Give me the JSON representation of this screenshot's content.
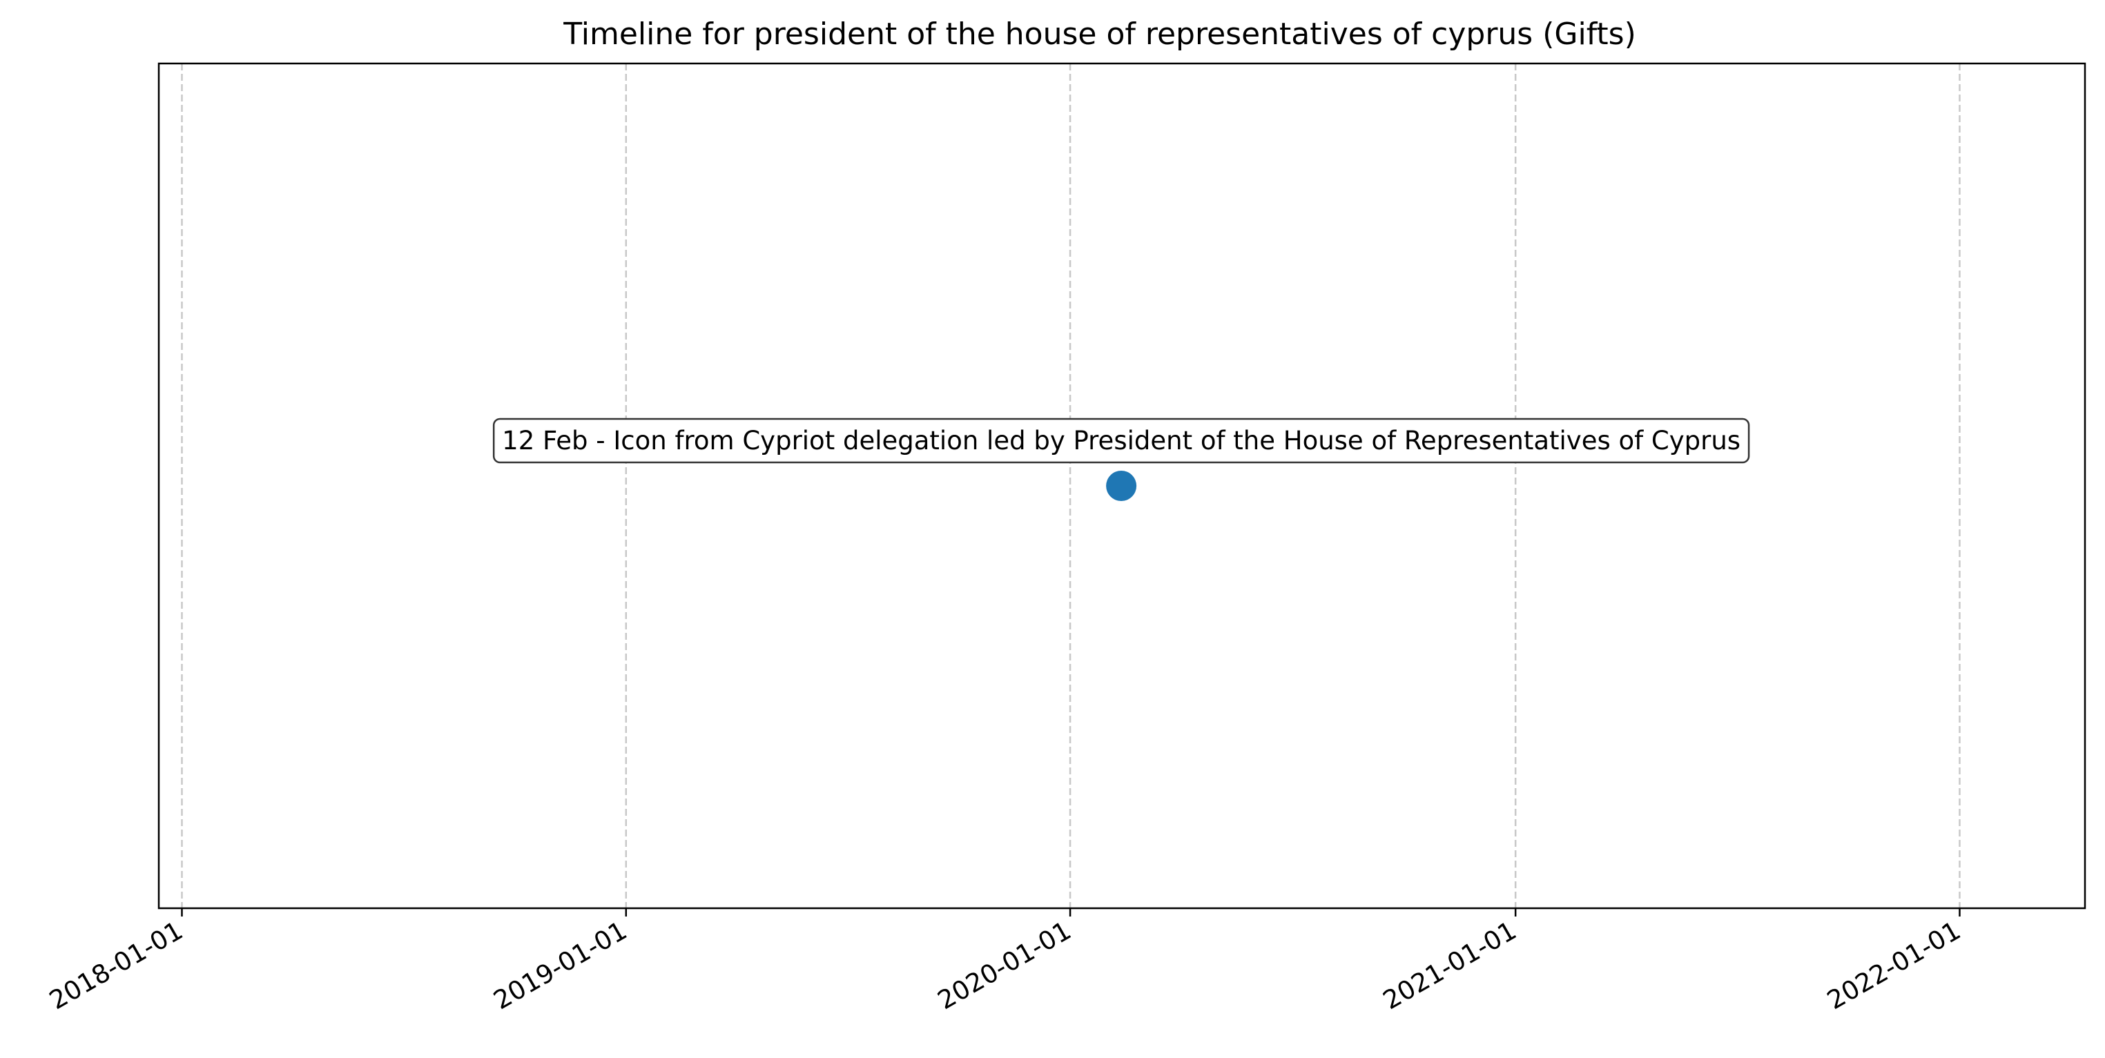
{
  "chart_data": {
    "type": "scatter",
    "title": "Timeline for president of the house of representatives of cyprus (Gifts)",
    "xlabel": "",
    "ylabel": "",
    "x_axis_type": "date",
    "xlim": [
      "2017-12-13",
      "2022-04-14"
    ],
    "ylim": [
      -1,
      1
    ],
    "grid": "x-dashed",
    "x_ticks": [
      "2018-01-01",
      "2019-01-01",
      "2020-01-01",
      "2021-01-01",
      "2022-01-01"
    ],
    "points": [
      {
        "date": "2020-02-12",
        "y": 0,
        "label": "12 Feb - Icon from Cypriot delegation led by President of the House of Representatives of Cyprus"
      }
    ],
    "colors": {
      "point": "#1f77b4",
      "grid": "#c8c8c8",
      "axis": "#000000",
      "annotation_border": "#333333"
    }
  }
}
